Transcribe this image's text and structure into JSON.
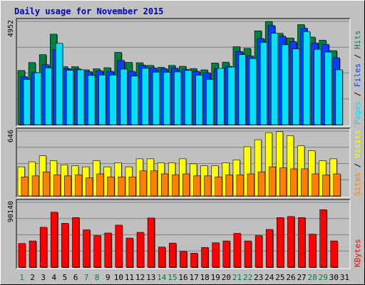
{
  "title": "Daily usage for November 2015",
  "chart_data": [
    {
      "type": "bar",
      "panel": "hits-files-pages",
      "scale_label": "4952",
      "ylim": [
        0,
        4952
      ],
      "side_labels": [
        {
          "text": "Pages",
          "color": "#00e0ff"
        },
        {
          "text": " / ",
          "color": "#000000"
        },
        {
          "text": "Files",
          "color": "#0040ff"
        },
        {
          "text": " / ",
          "color": "#000000"
        },
        {
          "text": "Hits",
          "color": "#008040"
        }
      ],
      "categories": [
        "1",
        "2",
        "3",
        "4",
        "5",
        "6",
        "7",
        "8",
        "9",
        "10",
        "11",
        "12",
        "13",
        "14",
        "15",
        "16",
        "17",
        "18",
        "19",
        "20",
        "21",
        "22",
        "23",
        "24",
        "25",
        "26",
        "27",
        "28",
        "29",
        "30",
        "31"
      ],
      "series": [
        {
          "name": "Hits",
          "color": "#008040",
          "values": [
            2600,
            2980,
            3360,
            4340,
            2780,
            2780,
            2630,
            2680,
            2730,
            3470,
            2990,
            2970,
            2840,
            2750,
            2840,
            2800,
            2690,
            2630,
            2960,
            3000,
            3740,
            3660,
            4500,
            4950,
            4380,
            4160,
            4800,
            4200,
            4050,
            3550,
            0
          ]
        },
        {
          "name": "Files",
          "color": "#0040ff",
          "values": [
            2300,
            2500,
            2880,
            3600,
            2690,
            2670,
            2540,
            2580,
            2560,
            3080,
            2560,
            2860,
            2720,
            2690,
            2710,
            2650,
            2560,
            2490,
            2680,
            2800,
            3510,
            3290,
            4130,
            4750,
            4240,
            3980,
            4630,
            3920,
            3850,
            3210,
            0
          ]
        },
        {
          "name": "Pages",
          "color": "#00e0ff",
          "values": [
            2170,
            2490,
            2720,
            3900,
            2610,
            2630,
            2360,
            2380,
            2380,
            2660,
            2330,
            2700,
            2520,
            2510,
            2530,
            2600,
            2370,
            2170,
            2700,
            2760,
            3360,
            3170,
            3940,
            4380,
            3830,
            3630,
            4460,
            3610,
            3480,
            2630,
            0
          ]
        }
      ]
    },
    {
      "type": "bar",
      "panel": "visits-sites",
      "scale_label": "646",
      "ylim": [
        0,
        646
      ],
      "side_labels": [
        {
          "text": "Sites",
          "color": "#ff8000"
        },
        {
          "text": " / ",
          "color": "#000000"
        },
        {
          "text": "Visits",
          "color": "#ffff00"
        }
      ],
      "categories": [
        "1",
        "2",
        "3",
        "4",
        "5",
        "6",
        "7",
        "8",
        "9",
        "10",
        "11",
        "12",
        "13",
        "14",
        "15",
        "16",
        "17",
        "18",
        "19",
        "20",
        "21",
        "22",
        "23",
        "24",
        "25",
        "26",
        "27",
        "28",
        "29",
        "30",
        "31"
      ],
      "series": [
        {
          "name": "Visits",
          "color": "#ffff00",
          "values": [
            290,
            340,
            400,
            350,
            310,
            300,
            290,
            350,
            290,
            330,
            290,
            370,
            370,
            330,
            330,
            370,
            320,
            300,
            300,
            330,
            360,
            490,
            560,
            630,
            640,
            600,
            500,
            450,
            350,
            370,
            0
          ]
        },
        {
          "name": "Sites",
          "color": "#ff8000",
          "values": [
            190,
            200,
            240,
            210,
            200,
            210,
            180,
            220,
            190,
            190,
            190,
            250,
            250,
            220,
            210,
            220,
            200,
            200,
            190,
            210,
            210,
            220,
            240,
            290,
            280,
            270,
            270,
            220,
            210,
            220,
            0
          ]
        }
      ]
    },
    {
      "type": "bar",
      "panel": "kbytes",
      "scale_label": "90140",
      "ylim": [
        0,
        90140
      ],
      "side_labels": [
        {
          "text": "KBytes",
          "color": "#ff0000"
        }
      ],
      "categories": [
        "1",
        "2",
        "3",
        "4",
        "5",
        "6",
        "7",
        "8",
        "9",
        "10",
        "11",
        "12",
        "13",
        "14",
        "15",
        "16",
        "17",
        "18",
        "19",
        "20",
        "21",
        "22",
        "23",
        "24",
        "25",
        "26",
        "27",
        "28",
        "29",
        "30",
        "31"
      ],
      "series": [
        {
          "name": "KBytes",
          "color": "#ff0000",
          "values": [
            33000,
            36500,
            55500,
            76500,
            61000,
            69000,
            52000,
            44000,
            47500,
            58500,
            40500,
            48500,
            68500,
            28000,
            33500,
            22000,
            19500,
            27500,
            34000,
            36500,
            47000,
            36500,
            44000,
            52500,
            69000,
            70500,
            69000,
            46000,
            80000,
            36500,
            0
          ]
        }
      ]
    }
  ],
  "weekend_days": [
    "1",
    "7",
    "8",
    "14",
    "15",
    "21",
    "22",
    "28",
    "29"
  ],
  "colors": {
    "background": "#c0c0c0",
    "frame": "#000000",
    "weekday_label": "#000000",
    "weekend_label": "#008040",
    "gridline": "#808080"
  }
}
